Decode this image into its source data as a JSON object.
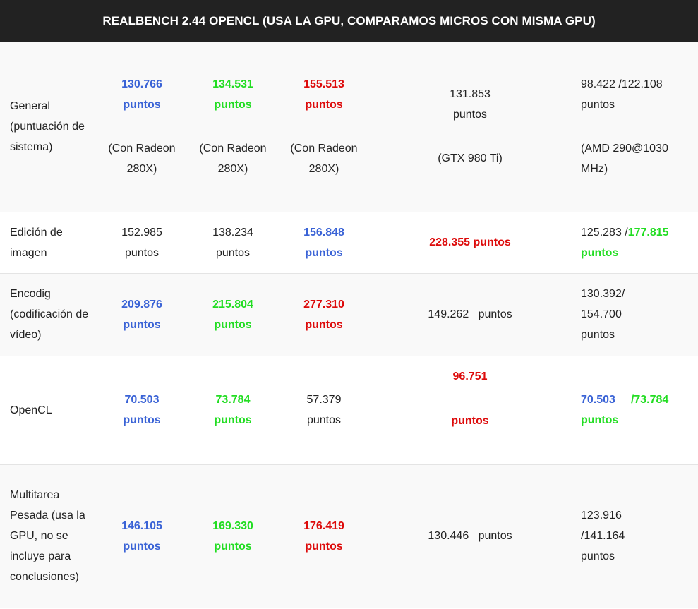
{
  "title": "REALBENCH 2.44 OPENCL (USA LA GPU, COMPARAMOS MICROS CON MISMA GPU)",
  "colors": {
    "header_bg": "#222222",
    "blue": "#3a63d6",
    "green": "#22dd22",
    "red": "#dd0b0b"
  },
  "rows": {
    "general": {
      "label": "General (puntuación de sistema)",
      "c1_value": "130.766",
      "c1_unit": "puntos",
      "c1_note": "(Con Radeon 280X)",
      "c2_value": "134.531",
      "c2_unit": "puntos",
      "c2_note": "(Con Radeon 280X)",
      "c3_value": "155.513",
      "c3_unit": "puntos",
      "c3_note": "(Con Radeon 280X)",
      "c4_value": "131.853",
      "c4_unit": "puntos",
      "c4_note": "(GTX 980 Ti)",
      "c5_value": "98.422 /122.108 puntos",
      "c5_note": "(AMD 290@1030 MHz)"
    },
    "edicion": {
      "label": "Edición de imagen",
      "c1_value": "152.985",
      "c1_unit": "puntos",
      "c2_value": "138.234",
      "c2_unit": "puntos",
      "c3_value": "156.848",
      "c3_unit": "puntos",
      "c4_value": "228.355 puntos",
      "c5_value_a": "125.283 /",
      "c5_value_b": "177.815",
      "c5_unit": "puntos"
    },
    "encodig": {
      "label": "Encodig (codificación de vídeo)",
      "c1_value": "209.876",
      "c1_unit": "puntos",
      "c2_value": "215.804",
      "c2_unit": "puntos",
      "c3_value": "277.310",
      "c3_unit": "puntos",
      "c4_value": "149.262   puntos",
      "c5_value": "130.392/ 154.700 puntos"
    },
    "opencl": {
      "label": "OpenCL",
      "c1_value": "70.503",
      "c1_unit": "puntos",
      "c2_value": "73.784",
      "c2_unit": "puntos",
      "c3_value": "57.379",
      "c3_unit": "puntos",
      "c4_value": "96.751",
      "c4_unit": "puntos",
      "c5_value_a": "70.503",
      "c5_value_b": "/73.784",
      "c5_unit": "puntos"
    },
    "multitarea": {
      "label": "Multitarea Pesada (usa la GPU, no se incluye para conclusiones)",
      "c1_value": "146.105",
      "c1_unit": "puntos",
      "c2_value": "169.330",
      "c2_unit": "puntos",
      "c3_value": "176.419",
      "c3_unit": "puntos",
      "c4_value": "130.446   puntos",
      "c5_value": "123.916 /141.164 puntos"
    }
  }
}
